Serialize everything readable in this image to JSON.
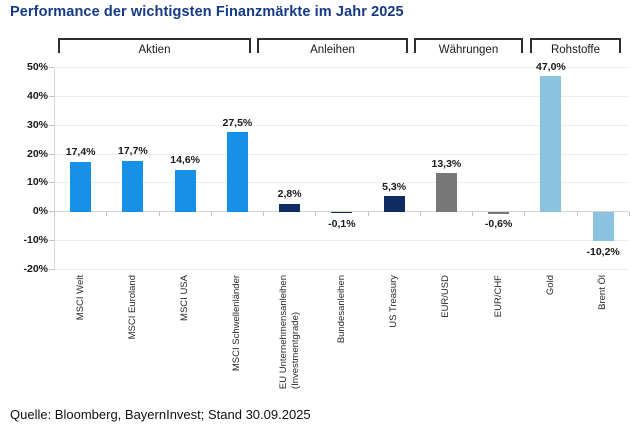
{
  "page": {
    "title": "Performance der wichtigsten Finanzmärkte im Jahr 2025",
    "source": "Quelle: Bloomberg, BayernInvest; Stand 30.09.2025"
  },
  "colors": {
    "title": "#143A85",
    "aktien": "#1791E6",
    "anleihen": "#0E2B62",
    "waehrungen": "#787878",
    "rohstoffe": "#8AC2DF",
    "gridline": "#EDEDED",
    "zero_line": "#D5D5D5",
    "axis": "#C2C2C2",
    "bracket": "#2E2E2E"
  },
  "chart_data": {
    "type": "bar",
    "title": "Performance der wichtigsten Finanzmärkte im Jahr 2025",
    "xlabel": "",
    "ylabel": "",
    "ylim": [
      -20,
      50
    ],
    "ytick_step": 10,
    "ytick_labels": [
      "50%",
      "40%",
      "30%",
      "20%",
      "10%",
      "0%",
      "-10%",
      "-20%"
    ],
    "grid": true,
    "legend": "none",
    "categories": [
      "MSCI Welt",
      "MSCI Euroland",
      "MSCI USA",
      "MSCI Schwellenländer",
      "EU Unternehmensanleihen\n(Investmentgrade)",
      "Bundesanleihen",
      "US Treasury",
      "EUR/USD",
      "EUR/CHF",
      "Gold",
      "Brent Öl"
    ],
    "values": [
      17.4,
      17.7,
      14.6,
      27.5,
      2.8,
      -0.1,
      5.3,
      13.3,
      -0.6,
      47.0,
      -10.2
    ],
    "value_labels": [
      "17,4%",
      "17,7%",
      "14,6%",
      "27,5%",
      "2,8%",
      "-0,1%",
      "5,3%",
      "13,3%",
      "-0,6%",
      "47,0%",
      "-10,2%"
    ],
    "groups": [
      {
        "label": "Aktien",
        "color": "#1791E6",
        "from": 0,
        "to": 3
      },
      {
        "label": "Anleihen",
        "color": "#0E2B62",
        "from": 4,
        "to": 6
      },
      {
        "label": "Währungen",
        "color": "#787878",
        "from": 7,
        "to": 8
      },
      {
        "label": "Rohstoffe",
        "color": "#8AC2DF",
        "from": 9,
        "to": 10
      }
    ]
  }
}
